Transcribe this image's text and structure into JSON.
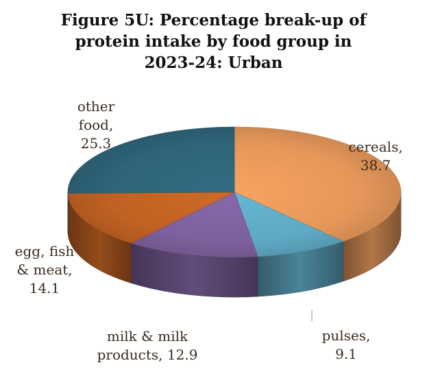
{
  "chart_data": {
    "type": "pie",
    "title": "Figure 5U: Percentage break-up of protein intake by food group in 2023-24: Urban",
    "title_lines": [
      "Figure 5U: Percentage break-up of",
      "protein intake by food group in",
      "2023-24: Urban"
    ],
    "style": "3d",
    "legend": "none",
    "slices": [
      {
        "label": "cereals",
        "value": 38.7,
        "label_lines": [
          "cereals,",
          "38.7"
        ],
        "color": "#E5975A"
      },
      {
        "label": "pulses",
        "value": 9.1,
        "label_lines": [
          "pulses,",
          "9.1"
        ],
        "color": "#5EA9C3"
      },
      {
        "label": "milk & milk products",
        "value": 12.9,
        "label_lines": [
          "milk & milk",
          "products, 12.9"
        ],
        "color": "#7D619D"
      },
      {
        "label": "egg, fish & meat",
        "value": 14.1,
        "label_lines": [
          "egg, fish",
          "& meat,",
          "14.1"
        ],
        "color": "#C06223"
      },
      {
        "label": "other food",
        "value": 25.3,
        "label_lines": [
          "other",
          "food,",
          "25.3"
        ],
        "color": "#2F6479"
      }
    ]
  }
}
